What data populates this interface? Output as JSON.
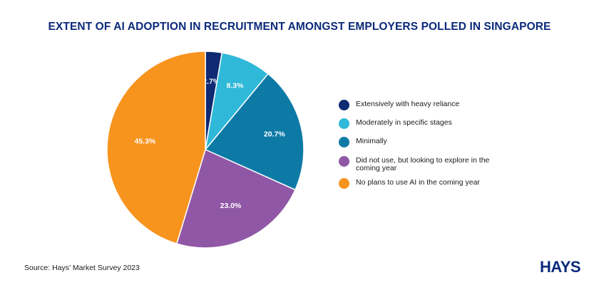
{
  "chart_data": {
    "type": "pie",
    "title": "EXTENT OF AI ADOPTION IN RECRUITMENT AMONGST EMPLOYERS POLLED IN SINGAPORE",
    "slices": [
      {
        "label": "Extensively with heavy reliance",
        "value": 2.7,
        "display": "2.7%",
        "color": "#0d2a72"
      },
      {
        "label": "Moderately in specific stages",
        "value": 8.3,
        "display": "8.3%",
        "color": "#2fb8d8"
      },
      {
        "label": " Minimally",
        "value": 20.7,
        "display": "20.7%",
        "color": "#0d7aa6"
      },
      {
        "label": "Did not use, but looking to explore in the coming year",
        "value": 23.0,
        "display": "23.0%",
        "color": "#9057a6"
      },
      {
        "label": "No plans to use AI in the coming year",
        "value": 45.3,
        "display": "45.3%",
        "color": "#f7941d"
      }
    ],
    "legend_position": "right"
  },
  "source": "Source: Hays’ Market Survey 2023",
  "logo_text": "HAYS"
}
